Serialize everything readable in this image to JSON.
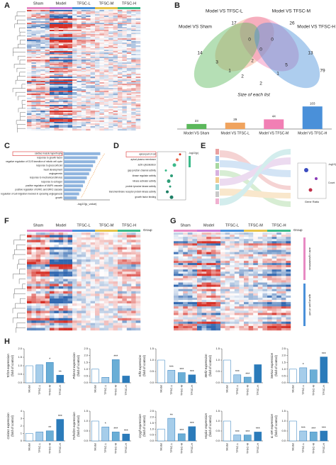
{
  "panel_labels": [
    "A",
    "B",
    "C",
    "D",
    "E",
    "F",
    "G",
    "H"
  ],
  "heatmap_groups": [
    "Sham",
    "Model",
    "TFSC-L",
    "TFSC-M",
    "TFSC-H"
  ],
  "heatmap_group_colors": [
    "#e78ac3",
    "#c77dd8",
    "#4a90d9",
    "#e6c44c",
    "#3cb98a"
  ],
  "heatmap_group_title": "Group",
  "g_annotations": [
    "actin cytoskeleton",
    "apical part of cell"
  ],
  "venn": {
    "sets": [
      {
        "name": "Model VS TFSC-L",
        "color": "#f4a582"
      },
      {
        "name": "Model VS TFSC-M",
        "color": "#f17fb4"
      },
      {
        "name": "Model VS Sham",
        "color": "#5cb85c"
      },
      {
        "name": "Model VS TFSC-H",
        "color": "#4a90d9"
      }
    ],
    "counts": [
      17,
      26,
      14,
      0,
      3,
      0,
      13,
      79,
      1,
      2,
      5,
      2,
      1,
      2,
      0
    ],
    "caption": "Size of each list"
  },
  "size_chart": {
    "type": "bar",
    "categories": [
      "Model VS Sham",
      "Model VS TFSC-L",
      "Model VS TFSC-M",
      "Model VS TFSC-H"
    ],
    "values": [
      23,
      29,
      44,
      103
    ],
    "colors": [
      "#5cb85c",
      "#f0a35e",
      "#f17fb4",
      "#4a90d9"
    ],
    "ylim": [
      0,
      110
    ]
  },
  "go_chart": {
    "type": "barh",
    "terms": [
      "cardiac muscle hypertrophy",
      "response to growth factor",
      "negative regulation of G1/S transition of mitotic cell cycle",
      "response to glucocorticoid",
      "heart development",
      "angiogenesis",
      "response to mechanical stimulus",
      "response to estrogen",
      "positive regulation of MAPK cascade",
      "positive regulation of ERK1 and ERK2 cascade",
      "negative regulation of cell migration involved in sprouting angiogenesis",
      "growth"
    ],
    "values": [
      9.5,
      8.8,
      8.2,
      7.6,
      7.1,
      6.6,
      6.0,
      5.5,
      5.0,
      4.5,
      4.0,
      3.4
    ],
    "xlim": [
      0,
      12
    ],
    "color": "#8fb4de",
    "xlabel": "-log10(p_value)"
  },
  "dot_chart": {
    "type": "dot",
    "terms": [
      "apical part of cell",
      "apical plasma membrane",
      "actin cytoskeleton",
      "gap junction channel activity",
      "kinase regulator activity",
      "kinase activator activity",
      "protein tyrosine kinase activity",
      "transmembrane receptor protein kinase activity",
      "growth factor binding"
    ],
    "values": [
      0.08,
      0.07,
      0.06,
      0.03,
      0.05,
      0.04,
      0.045,
      0.035,
      0.05
    ],
    "xlim": [
      0,
      0.1
    ],
    "legend_title": "-log10(p)"
  },
  "sankey": {
    "xlabel": "Gene Ratio",
    "legend_title": "-log10(Pvalue)",
    "size_title": "Count"
  },
  "panel_h": {
    "categories": [
      "Model",
      "TFSC-L",
      "TFSC-M",
      "TFSC-H"
    ],
    "colors": [
      "#ffffff",
      "#a6cdea",
      "#6aaed6",
      "#2b7bba"
    ],
    "unit": "(fold of control)",
    "charts": [
      {
        "gene": "Tcf19 expression",
        "values": [
          1.0,
          1.05,
          1.2,
          0.45
        ],
        "sig": [
          null,
          null,
          "*",
          "**"
        ],
        "ylim": [
          0,
          2
        ],
        "yticks": [
          {
            "value": 0,
            "label": "0.0"
          },
          {
            "value": 0.5,
            "label": "0.5"
          },
          {
            "value": 1,
            "label": "1.0"
          },
          {
            "value": 1.5,
            "label": "1.5"
          },
          {
            "value": 2,
            "label": "2.0"
          }
        ]
      },
      {
        "gene": "Pdzrn3 expression",
        "values": [
          1.0,
          0.4,
          1.7,
          0.5
        ],
        "sig": [
          null,
          null,
          "***",
          null
        ],
        "ylim": [
          0,
          2.5
        ],
        "yticks": [
          {
            "value": 0,
            "label": "0.0"
          },
          {
            "value": 0.5,
            "label": "0.5"
          },
          {
            "value": 1,
            "label": "1.0"
          },
          {
            "value": 1.5,
            "label": "1.5"
          },
          {
            "value": 2,
            "label": "2.0"
          },
          {
            "value": 2.5,
            "label": "2.5"
          }
        ]
      },
      {
        "gene": "Klf4 expression",
        "values": [
          1.0,
          0.55,
          0.45,
          0.35
        ],
        "sig": [
          null,
          "***",
          "***",
          "***"
        ],
        "ylim": [
          0,
          1.5
        ],
        "yticks": [
          {
            "value": 0,
            "label": "0.0"
          },
          {
            "value": 0.5,
            "label": "0.5"
          },
          {
            "value": 1,
            "label": "1.0"
          },
          {
            "value": 1.5,
            "label": "1.5"
          }
        ]
      },
      {
        "gene": "Mef2 expression",
        "values": [
          1.0,
          0.35,
          0.25,
          0.8
        ],
        "sig": [
          null,
          "***",
          "***",
          null
        ],
        "ylim": [
          0,
          1.5
        ],
        "yticks": [
          {
            "value": 0,
            "label": "0.0"
          },
          {
            "value": 0.5,
            "label": "0.5"
          },
          {
            "value": 1,
            "label": "1.0"
          },
          {
            "value": 1.5,
            "label": "1.5"
          }
        ]
      },
      {
        "gene": "Serta1 expression",
        "values": [
          1.0,
          1.1,
          0.95,
          1.9
        ],
        "sig": [
          null,
          "*",
          null,
          "***"
        ],
        "ylim": [
          0,
          2.5
        ],
        "yticks": [
          {
            "value": 0,
            "label": "0.0"
          },
          {
            "value": 0.5,
            "label": "0.5"
          },
          {
            "value": 1,
            "label": "1.0"
          },
          {
            "value": 1.5,
            "label": "1.5"
          },
          {
            "value": 2,
            "label": "2.0"
          },
          {
            "value": 2.5,
            "label": "2.5"
          }
        ]
      },
      {
        "gene": "Col4a1 expression",
        "values": [
          1.0,
          1.2,
          1.35,
          2.9
        ],
        "sig": [
          null,
          null,
          "**",
          "***"
        ],
        "ylim": [
          0,
          4
        ],
        "yticks": [
          0,
          1,
          2,
          3,
          4
        ]
      },
      {
        "gene": "Tnfrsf25 expression",
        "values": [
          1.0,
          0.7,
          0.45,
          0.35
        ],
        "sig": [
          null,
          "*",
          "***",
          "***"
        ],
        "ylim": [
          0,
          1.5
        ],
        "yticks": [
          {
            "value": 0,
            "label": "0.0"
          },
          {
            "value": 0.5,
            "label": "0.5"
          },
          {
            "value": 1,
            "label": "1.0"
          },
          {
            "value": 1.5,
            "label": "1.5"
          }
        ]
      },
      {
        "gene": "Crygf expression",
        "values": [
          1.0,
          1.9,
          0.6,
          1.2
        ],
        "sig": [
          null,
          "**",
          "***",
          "***"
        ],
        "ylim": [
          0,
          2.5
        ],
        "yticks": [
          {
            "value": 0,
            "label": "0.0"
          },
          {
            "value": 0.5,
            "label": "0.5"
          },
          {
            "value": 1,
            "label": "1.0"
          },
          {
            "value": 1.5,
            "label": "1.5"
          },
          {
            "value": 2,
            "label": "2.0"
          },
          {
            "value": 2.5,
            "label": "2.5"
          }
        ]
      },
      {
        "gene": "Hspb1 expression",
        "values": [
          1.0,
          0.3,
          0.3,
          0.45
        ],
        "sig": [
          null,
          "***",
          "***",
          "***"
        ],
        "ylim": [
          0,
          1.5
        ],
        "yticks": [
          {
            "value": 0,
            "label": "0.0"
          },
          {
            "value": 0.5,
            "label": "0.5"
          },
          {
            "value": 1,
            "label": "1.0"
          },
          {
            "value": 1.5,
            "label": "1.5"
          }
        ]
      },
      {
        "gene": "IL-6R expression",
        "values": [
          1.0,
          0.5,
          0.45,
          0.5
        ],
        "sig": [
          null,
          "***",
          "***",
          "***"
        ],
        "ylim": [
          0,
          1.5
        ],
        "yticks": [
          {
            "value": 0,
            "label": "0.0"
          },
          {
            "value": 0.5,
            "label": "0.5"
          },
          {
            "value": 1,
            "label": "1.0"
          },
          {
            "value": 1.5,
            "label": "1.5"
          }
        ]
      }
    ]
  }
}
